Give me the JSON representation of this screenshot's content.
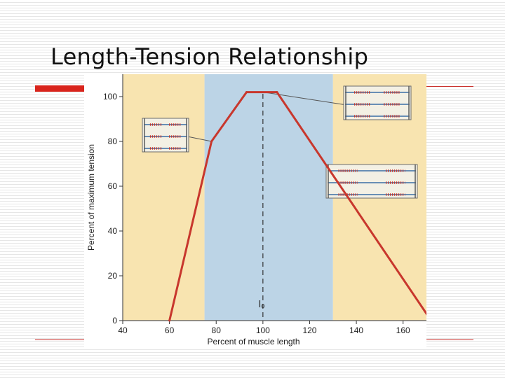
{
  "slide": {
    "title": "Length-Tension Relationship"
  },
  "chart_data": {
    "type": "line",
    "xlabel": "Percent of muscle length",
    "ylabel": "Percent of maximum tension",
    "x_ticks": [
      40,
      60,
      80,
      100,
      120,
      140,
      160
    ],
    "y_ticks": [
      0,
      20,
      40,
      60,
      80,
      100
    ],
    "xlim": [
      40,
      170
    ],
    "ylim": [
      0,
      110
    ],
    "series": [
      {
        "x": [
          60,
          78,
          93,
          106,
          172
        ],
        "y": [
          0,
          80,
          102,
          102,
          0
        ]
      }
    ],
    "optimal_length_marker": {
      "x": 100,
      "label": "l₀"
    },
    "shaded_regions": [
      {
        "from": 40,
        "to": 75,
        "color": "#f8e4b0"
      },
      {
        "from": 75,
        "to": 130,
        "color": "#bcd4e6"
      },
      {
        "from": 130,
        "to": 170,
        "color": "#f8e4b0"
      }
    ],
    "colors": {
      "line": "#c8372d",
      "grid_frame": "#555555",
      "dashed_marker": "#333333"
    },
    "sarcomere_diagrams": [
      {
        "position": "short",
        "x": 78,
        "y": 80
      },
      {
        "position": "optimal",
        "x": 100,
        "y": 102
      },
      {
        "position": "long",
        "x": 130,
        "y": 60
      }
    ]
  }
}
